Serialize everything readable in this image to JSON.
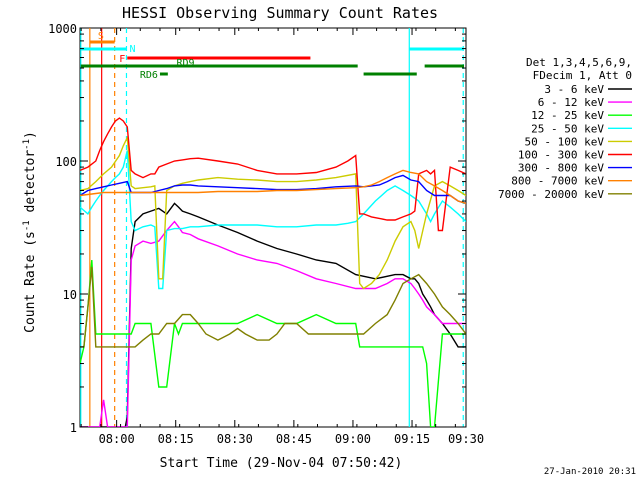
{
  "chart_data": {
    "type": "line",
    "title": "HESSI Observing Summary Count Rates",
    "xlabel": "Start Time (29-Nov-04 07:50:42)",
    "ylabel": "Count Rate (s",
    "ylabel_sup": "-1",
    "ylabel_mid": " detector",
    "ylabel_sup2": "-1",
    "ylabel_end": ")",
    "x_unit": "minutes after 07:50:42",
    "xlim": [
      0,
      98
    ],
    "ylim": [
      1,
      1000
    ],
    "y_scale": "log",
    "x_ticks": [
      {
        "label": "08:00",
        "x": 9.3
      },
      {
        "label": "08:15",
        "x": 24.3
      },
      {
        "label": "08:30",
        "x": 39.3
      },
      {
        "label": "08:45",
        "x": 54.3
      },
      {
        "label": "09:00",
        "x": 69.3
      },
      {
        "label": "09:15",
        "x": 84.3
      },
      {
        "label": "09:30",
        "x": 99.3
      }
    ],
    "y_ticks": [
      {
        "label": "1",
        "y": 1
      },
      {
        "label": "10",
        "y": 10
      },
      {
        "label": "100",
        "y": 100
      },
      {
        "label": "1000",
        "y": 1000
      }
    ],
    "legend": {
      "header": [
        "Det 1,3,4,5,6,9,",
        "FDecim 1, Att 0"
      ],
      "placement": "right"
    },
    "series": [
      {
        "name": "3 - 6 keV",
        "color": "#000000",
        "x": [
          0,
          2,
          4,
          5,
          6,
          7,
          8,
          9,
          10,
          11,
          11.5,
          12,
          13,
          14,
          16,
          18,
          20,
          22,
          24,
          25,
          26,
          28,
          30,
          35,
          40,
          45,
          50,
          55,
          60,
          65,
          70,
          75,
          80,
          82,
          84,
          85,
          86,
          87,
          88,
          89,
          90,
          92,
          94,
          96,
          98
        ],
        "y": [
          1,
          1,
          1,
          1,
          1,
          1,
          1,
          1,
          1,
          1,
          1,
          1.2,
          22,
          35,
          40,
          42,
          44,
          40,
          48,
          45,
          42,
          40,
          38,
          33,
          29,
          25,
          22,
          20,
          18,
          17,
          14,
          13,
          14,
          14,
          13,
          13,
          12,
          10,
          9,
          8,
          7,
          6,
          5,
          4,
          4
        ]
      },
      {
        "name": "6 - 12 keV",
        "color": "#ff00ff",
        "x": [
          0,
          2,
          3,
          4,
          5,
          6,
          7,
          8,
          9,
          10,
          11,
          12,
          13,
          14,
          16,
          18,
          20,
          22,
          24,
          25,
          26,
          28,
          30,
          35,
          40,
          45,
          50,
          55,
          60,
          65,
          70,
          75,
          78,
          80,
          82,
          84,
          85,
          86,
          87,
          88,
          90,
          92,
          94,
          96,
          98
        ],
        "y": [
          1,
          1,
          1,
          1,
          1,
          1.6,
          1,
          1,
          1,
          1,
          1,
          1,
          18,
          23,
          25,
          24,
          25,
          30,
          35,
          32,
          29,
          28,
          26,
          23,
          20,
          18,
          17,
          15,
          13,
          12,
          11,
          11,
          12,
          13,
          13,
          12,
          11,
          10,
          9,
          8,
          7,
          6,
          6,
          6,
          6
        ]
      },
      {
        "name": "12 - 25 keV",
        "color": "#00ff00",
        "x": [
          0,
          1,
          2,
          3,
          4,
          5,
          6,
          7,
          8,
          9,
          10,
          11,
          12,
          13,
          14,
          16,
          18,
          20,
          22,
          24,
          25,
          26,
          28,
          30,
          35,
          40,
          45,
          50,
          55,
          60,
          65,
          70,
          71,
          72,
          75,
          80,
          84,
          85,
          86,
          87,
          88,
          89,
          90,
          92,
          94,
          96,
          98
        ],
        "y": [
          3,
          4,
          8,
          18,
          5,
          5,
          5,
          5,
          5,
          5,
          5,
          5,
          5,
          5,
          6,
          6,
          6,
          2,
          2,
          6,
          5,
          6,
          6,
          6,
          6,
          6,
          7,
          6,
          6,
          7,
          6,
          6,
          4,
          4,
          4,
          4,
          4,
          4,
          4,
          4,
          3,
          1,
          1,
          5,
          5,
          5,
          5
        ]
      },
      {
        "name": "25 - 50 keV",
        "color": "#00ffff",
        "x": [
          0,
          2,
          3,
          4,
          5,
          6,
          7,
          8,
          9,
          10,
          11,
          12,
          13,
          14,
          16,
          18,
          19,
          20,
          21,
          22,
          24,
          26,
          28,
          30,
          35,
          40,
          45,
          50,
          55,
          60,
          62,
          65,
          68,
          70,
          72,
          75,
          78,
          80,
          82,
          84,
          86,
          88,
          89,
          90,
          92,
          94,
          96,
          98
        ],
        "y": [
          45,
          40,
          45,
          50,
          55,
          60,
          65,
          70,
          75,
          80,
          90,
          120,
          35,
          30,
          32,
          33,
          32,
          11,
          11,
          30,
          31,
          31,
          32,
          32,
          33,
          33,
          33,
          32,
          32,
          33,
          33,
          33,
          34,
          35,
          40,
          50,
          60,
          65,
          60,
          55,
          50,
          40,
          35,
          40,
          50,
          45,
          40,
          35
        ]
      },
      {
        "name": "50 - 100 keV",
        "color": "#cccc00",
        "x": [
          0,
          2,
          4,
          6,
          8,
          10,
          11,
          12,
          13,
          14,
          16,
          18,
          19,
          20,
          21,
          22,
          24,
          26,
          28,
          30,
          35,
          40,
          45,
          50,
          55,
          60,
          65,
          70,
          71,
          72,
          74,
          76,
          78,
          80,
          82,
          84,
          85,
          86,
          88,
          90,
          92,
          94,
          96,
          98
        ],
        "y": [
          60,
          62,
          70,
          80,
          90,
          110,
          130,
          150,
          65,
          62,
          63,
          64,
          65,
          13,
          13,
          60,
          65,
          68,
          70,
          72,
          75,
          73,
          72,
          70,
          70,
          72,
          75,
          80,
          12,
          11,
          12,
          14,
          18,
          25,
          32,
          35,
          30,
          22,
          40,
          65,
          70,
          65,
          60,
          55
        ]
      },
      {
        "name": "100 - 300 keV",
        "color": "#ff0000",
        "x": [
          0,
          2,
          4,
          5,
          6,
          7,
          8,
          9,
          10,
          11,
          12,
          13,
          14,
          16,
          18,
          19,
          20,
          22,
          24,
          26,
          28,
          30,
          35,
          40,
          45,
          50,
          55,
          60,
          65,
          68,
          70,
          71,
          72,
          74,
          76,
          78,
          80,
          82,
          84,
          85,
          86,
          88,
          89,
          90,
          91,
          92,
          94,
          96,
          98
        ],
        "y": [
          85,
          90,
          100,
          120,
          140,
          160,
          180,
          200,
          210,
          200,
          180,
          85,
          80,
          75,
          80,
          80,
          90,
          95,
          100,
          102,
          104,
          105,
          100,
          95,
          85,
          80,
          80,
          82,
          90,
          100,
          110,
          40,
          40,
          38,
          37,
          36,
          36,
          38,
          40,
          42,
          80,
          85,
          80,
          85,
          30,
          30,
          90,
          85,
          80
        ]
      },
      {
        "name": "300 - 800 keV",
        "color": "#0000ff",
        "x": [
          0,
          2,
          4,
          6,
          8,
          10,
          12,
          13,
          14,
          16,
          18,
          20,
          22,
          24,
          26,
          28,
          30,
          35,
          40,
          45,
          50,
          55,
          60,
          65,
          70,
          72,
          74,
          76,
          78,
          80,
          82,
          84,
          86,
          88,
          90,
          92,
          94,
          96,
          98
        ],
        "y": [
          55,
          60,
          62,
          64,
          66,
          68,
          70,
          58,
          58,
          58,
          58,
          60,
          62,
          65,
          66,
          66,
          65,
          64,
          63,
          62,
          61,
          61,
          62,
          64,
          65,
          64,
          65,
          66,
          70,
          75,
          78,
          72,
          70,
          60,
          55,
          55,
          55,
          50,
          48
        ]
      },
      {
        "name": "800 - 7000 keV",
        "color": "#ff8000",
        "x": [
          0,
          2,
          4,
          6,
          8,
          10,
          12,
          13,
          14,
          16,
          18,
          20,
          22,
          24,
          26,
          28,
          30,
          35,
          40,
          45,
          50,
          55,
          60,
          65,
          70,
          72,
          74,
          76,
          78,
          80,
          82,
          84,
          86,
          88,
          90,
          92,
          94,
          96,
          98
        ],
        "y": [
          55,
          56,
          57,
          58,
          58,
          58,
          58,
          58,
          58,
          58,
          58,
          58,
          58,
          58,
          58,
          58,
          58,
          59,
          59,
          59,
          60,
          60,
          61,
          62,
          63,
          64,
          66,
          70,
          75,
          80,
          85,
          82,
          80,
          70,
          65,
          60,
          55,
          50,
          48
        ]
      },
      {
        "name": "7000 - 20000 keV",
        "color": "#808000",
        "x": [
          0,
          1,
          2,
          3,
          4,
          5,
          6,
          7,
          8,
          9,
          10,
          11,
          12,
          13,
          14,
          16,
          18,
          20,
          22,
          24,
          26,
          28,
          30,
          32,
          35,
          38,
          40,
          42,
          45,
          48,
          50,
          52,
          55,
          58,
          60,
          62,
          65,
          68,
          70,
          72,
          75,
          78,
          80,
          82,
          84,
          86,
          88,
          90,
          92,
          94,
          96,
          98
        ],
        "y": [
          4,
          4,
          8,
          16,
          4,
          4,
          4,
          4,
          4,
          4,
          4,
          4,
          4,
          4,
          4,
          4.5,
          5,
          5,
          6,
          6,
          7,
          7,
          6,
          5,
          4.5,
          5,
          5.5,
          5,
          4.5,
          4.5,
          5,
          6,
          6,
          5,
          5,
          5,
          5,
          5,
          5,
          5,
          6,
          7,
          9,
          12,
          13,
          14,
          12,
          10,
          8,
          7,
          6,
          5
        ]
      }
    ],
    "markers": {
      "vertical_lines": [
        {
          "x": 2.5,
          "color": "#ff8000",
          "style": "solid"
        },
        {
          "x": 5.5,
          "color": "#ff0000",
          "style": "solid"
        },
        {
          "x": 8.8,
          "color": "#ff8000",
          "style": "dashed"
        },
        {
          "x": 11.8,
          "color": "#00ffff",
          "style": "dashed"
        },
        {
          "x": 0.2,
          "color": "#00ffff",
          "style": "solid"
        },
        {
          "x": 83.6,
          "color": "#00ffff",
          "style": "solid"
        },
        {
          "x": 97.3,
          "color": "#00ffff",
          "style": "dashed"
        }
      ],
      "state_bars": [
        {
          "label": "S",
          "color": "#ff8000",
          "x0": 2.5,
          "x1": 8.8,
          "row": 0
        },
        {
          "label": "N",
          "color": "#00ffff",
          "x0": 0.2,
          "x1": 11.8,
          "row": 1,
          "label_side": "end"
        },
        {
          "label": "",
          "color": "#00ffff",
          "x0": 83.6,
          "x1": 97.3,
          "row": 1
        },
        {
          "label": "F",
          "color": "#ff0000",
          "x0": 12.0,
          "x1": 58.5,
          "row": 2,
          "label_side": "start"
        },
        {
          "label": "RD9",
          "color": "#008000",
          "x0": 0.2,
          "x1": 70.5,
          "row": 3,
          "label_side": "inline"
        },
        {
          "label": "",
          "color": "#008000",
          "x0": 72.0,
          "x1": 85.5,
          "row": 4
        },
        {
          "label": "",
          "color": "#008000",
          "x0": 87.5,
          "x1": 97.5,
          "row": 3
        },
        {
          "label": "RD6",
          "color": "#008000",
          "x0": 20.3,
          "x1": 22.3,
          "row": 4,
          "label_side": "start"
        }
      ]
    },
    "grid": false
  },
  "footer": {
    "date_stamp": "27-Jan-2010 20:31"
  }
}
